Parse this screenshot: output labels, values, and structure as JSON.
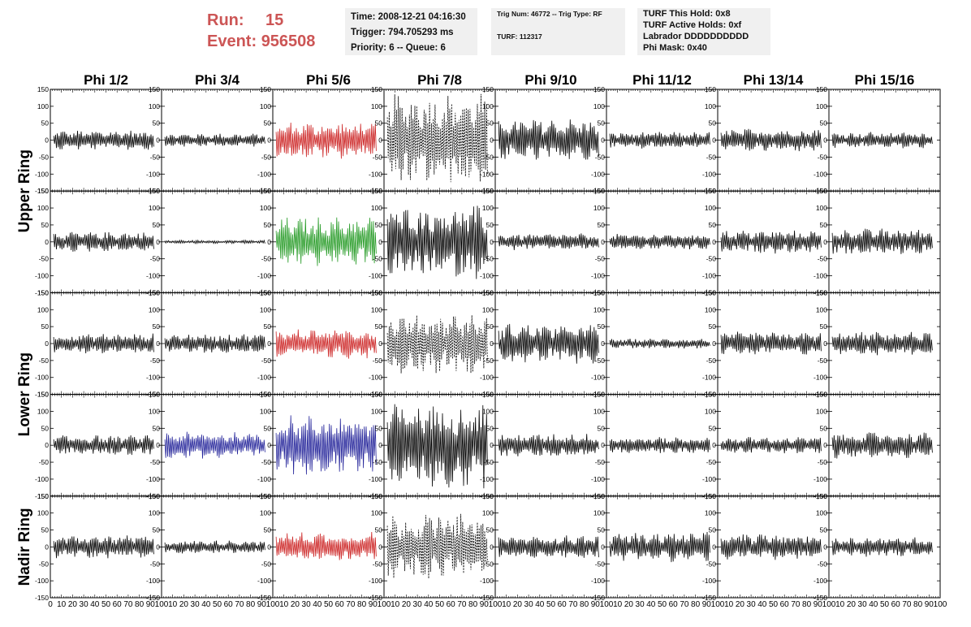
{
  "header": {
    "run_label": "Run:",
    "run_value": "15",
    "event_label": "Event:",
    "event_value": "956508"
  },
  "info_panel_1": {
    "time": "Time: 2008-12-21 04:16:30",
    "trigger": "Trigger: 794.705293 ms",
    "priority": "Priority: 6 -- Queue: 6"
  },
  "info_panel_2": {
    "trig": "Trig Num: 46772 -- Trig Type: RF",
    "turf": "TURF: 112317"
  },
  "info_panel_3": {
    "this_hold": "TURF This Hold: 0x8",
    "active_holds": "TURF Active Holds: 0xf",
    "labrador": "Labrador DDDDDDDDDD",
    "phi_mask": "Phi Mask: 0x40"
  },
  "chart_data": {
    "type": "line",
    "columns": [
      "Phi 1/2",
      "Phi 3/4",
      "Phi 5/6",
      "Phi 7/8",
      "Phi 9/10",
      "Phi 11/12",
      "Phi 13/14",
      "Phi 15/16"
    ],
    "ring_labels": [
      "Upper Ring",
      "Lower Ring",
      "Nadir Ring"
    ],
    "ylim": [
      -150,
      150
    ],
    "xlim": [
      0,
      100
    ],
    "y_tick_labels": [
      "150",
      "100",
      "50",
      "0",
      "-50",
      "-100",
      "-150"
    ],
    "x_tick_labels": [
      "0",
      "10",
      "20",
      "30",
      "40",
      "50",
      "60",
      "70",
      "80",
      "90",
      "100"
    ],
    "colors": {
      "black": "#000000",
      "red": "#cc2222",
      "green": "#229922",
      "blue": "#222299"
    },
    "rows": [
      [
        {
          "amp": 30,
          "color": "black"
        },
        {
          "amp": 20,
          "color": "black"
        },
        {
          "amp": 55,
          "color": "red"
        },
        {
          "amp": 140,
          "color": "black",
          "dashed": true
        },
        {
          "amp": 65,
          "color": "black"
        },
        {
          "amp": 25,
          "color": "black"
        },
        {
          "amp": 35,
          "color": "black"
        },
        {
          "amp": 25,
          "color": "black"
        }
      ],
      [
        {
          "amp": 30,
          "color": "black"
        },
        {
          "amp": 5,
          "color": "black"
        },
        {
          "amp": 75,
          "color": "green"
        },
        {
          "amp": 110,
          "color": "black"
        },
        {
          "amp": 25,
          "color": "black"
        },
        {
          "amp": 25,
          "color": "black"
        },
        {
          "amp": 35,
          "color": "black"
        },
        {
          "amp": 40,
          "color": "black"
        }
      ],
      [
        {
          "amp": 30,
          "color": "black"
        },
        {
          "amp": 30,
          "color": "black"
        },
        {
          "amp": 45,
          "color": "red"
        },
        {
          "amp": 90,
          "color": "black",
          "dashed": true
        },
        {
          "amp": 60,
          "color": "black"
        },
        {
          "amp": 15,
          "color": "black"
        },
        {
          "amp": 35,
          "color": "black"
        },
        {
          "amp": 35,
          "color": "black"
        }
      ],
      [
        {
          "amp": 30,
          "color": "black"
        },
        {
          "amp": 40,
          "color": "blue"
        },
        {
          "amp": 90,
          "color": "blue"
        },
        {
          "amp": 130,
          "color": "black"
        },
        {
          "amp": 35,
          "color": "black"
        },
        {
          "amp": 25,
          "color": "black"
        },
        {
          "amp": 25,
          "color": "black"
        },
        {
          "amp": 40,
          "color": "black"
        }
      ],
      [
        {
          "amp": 35,
          "color": "black"
        },
        {
          "amp": 20,
          "color": "black"
        },
        {
          "amp": 45,
          "color": "red"
        },
        {
          "amp": 100,
          "color": "black",
          "dashed": true
        },
        {
          "amp": 35,
          "color": "black"
        },
        {
          "amp": 45,
          "color": "black"
        },
        {
          "amp": 40,
          "color": "black"
        },
        {
          "amp": 30,
          "color": "black"
        }
      ]
    ]
  }
}
